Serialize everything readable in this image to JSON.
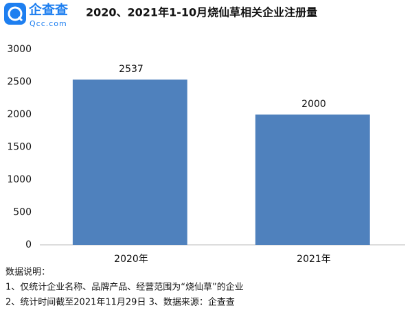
{
  "logo": {
    "name": "企查查",
    "domain": "Qcc.com"
  },
  "chart_data": {
    "type": "bar",
    "title": "2020、2021年1-10月烧仙草相关企业注册量",
    "categories": [
      "2020年",
      "2021年"
    ],
    "values": [
      2537,
      2000
    ],
    "color": "#4f81bd",
    "ylim": [
      0,
      3000
    ],
    "yticks": [
      0,
      500,
      1000,
      1500,
      2000,
      2500,
      3000
    ],
    "grid": false
  },
  "notes": [
    "数据说明：",
    "1、仅统计企业名称、品牌产品、经营范围为“烧仙草”的企业",
    "2、统计时间截至2021年11月29日  3、数据来源：企查查"
  ]
}
